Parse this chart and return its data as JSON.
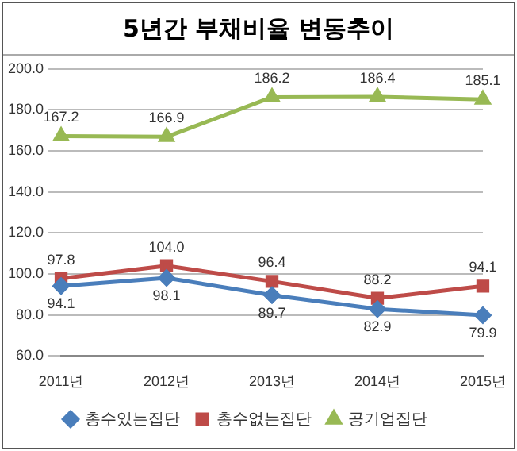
{
  "chart_data": {
    "type": "line",
    "title": "5년간 부채비율 변동추이",
    "categories": [
      "2011년",
      "2012년",
      "2013년",
      "2014년",
      "2015년"
    ],
    "series": [
      {
        "name": "총수있는집단",
        "color": "#4a7ebb",
        "marker": "diamond",
        "values": [
          94.1,
          98.1,
          89.7,
          82.9,
          79.9
        ]
      },
      {
        "name": "총수없는집단",
        "color": "#be4b48",
        "marker": "square",
        "values": [
          97.8,
          104.0,
          96.4,
          88.2,
          94.1
        ]
      },
      {
        "name": "공기업집단",
        "color": "#98b954",
        "marker": "triangle",
        "values": [
          167.2,
          166.9,
          186.2,
          186.4,
          185.1
        ]
      }
    ],
    "value_labels": [
      [
        "94.1",
        "98.1",
        "89.7",
        "82.9",
        "79.9"
      ],
      [
        "97.8",
        "104.0",
        "96.4",
        "88.2",
        "94.1"
      ],
      [
        "167.2",
        "166.9",
        "186.2",
        "186.4",
        "185.1"
      ]
    ],
    "ylim": [
      60,
      200
    ],
    "yticks": [
      {
        "value": 60,
        "label": "60.0"
      },
      {
        "value": 80,
        "label": "80.0"
      },
      {
        "value": 100,
        "label": "100.0"
      },
      {
        "value": 120,
        "label": "120.0"
      },
      {
        "value": 140,
        "label": "140.0"
      },
      {
        "value": 160,
        "label": "160.0"
      },
      {
        "value": 180,
        "label": "180.0"
      },
      {
        "value": 200,
        "label": "200.0"
      }
    ],
    "grid": "y",
    "legend": "bottom"
  }
}
